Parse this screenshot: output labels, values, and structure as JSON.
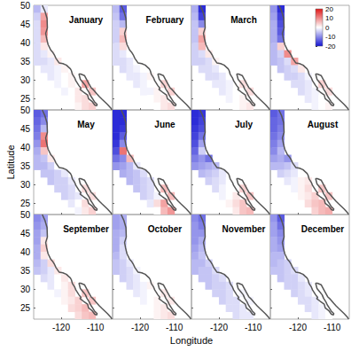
{
  "chart_data": {
    "type": "heatmap",
    "x_label": "Longitude",
    "y_label": "Latitude",
    "xlim": [
      -128,
      -105
    ],
    "ylim": [
      22,
      50
    ],
    "xticks": [
      -120,
      -110
    ],
    "yticks": [
      25,
      30,
      35,
      40,
      45,
      50
    ],
    "grid": false,
    "cell_size": [
      2,
      2
    ],
    "cells": [
      [
        -127,
        49
      ],
      [
        -125,
        49
      ],
      [
        -127,
        47
      ],
      [
        -125,
        47
      ],
      [
        -127,
        45
      ],
      [
        -125,
        45
      ],
      [
        -127,
        43
      ],
      [
        -125,
        43
      ],
      [
        -127,
        41
      ],
      [
        -125,
        41
      ],
      [
        -127,
        39
      ],
      [
        -125,
        39
      ],
      [
        -127,
        37
      ],
      [
        -125,
        37
      ],
      [
        -123,
        37
      ],
      [
        -127,
        35
      ],
      [
        -125,
        35
      ],
      [
        -123,
        35
      ],
      [
        -121,
        35
      ],
      [
        -125,
        33
      ],
      [
        -123,
        33
      ],
      [
        -121,
        33
      ],
      [
        -119,
        33
      ],
      [
        -123,
        31
      ],
      [
        -121,
        31
      ],
      [
        -119,
        31
      ],
      [
        -117,
        31
      ],
      [
        -121,
        29
      ],
      [
        -119,
        29
      ],
      [
        -117,
        29
      ],
      [
        -113,
        29
      ],
      [
        -119,
        27
      ],
      [
        -117,
        27
      ],
      [
        -115,
        27
      ],
      [
        -111,
        27
      ],
      [
        -117,
        25
      ],
      [
        -115,
        25
      ],
      [
        -113,
        25
      ],
      [
        -115,
        23
      ],
      [
        -113,
        23
      ],
      [
        -111,
        23
      ]
    ],
    "panels": [
      {
        "title": "January",
        "values": [
          -6,
          -2,
          -4,
          8,
          -3,
          10,
          -3,
          9,
          -3,
          6,
          -3,
          2,
          -3,
          -2,
          1,
          -3,
          -3,
          -2,
          2,
          -2,
          -2,
          -1,
          1,
          -2,
          -1,
          0,
          1,
          -1,
          0,
          1,
          8,
          -1,
          0,
          2,
          5,
          0,
          2,
          3,
          1,
          3,
          4
        ]
      },
      {
        "title": "February",
        "values": [
          -6,
          -14,
          -5,
          -12,
          -4,
          -6,
          -4,
          4,
          -4,
          6,
          -3,
          3,
          -3,
          -2,
          0,
          -3,
          -3,
          -2,
          0,
          -3,
          -2,
          -1,
          0,
          -2,
          -2,
          -1,
          1,
          -2,
          -1,
          0,
          4,
          -1,
          -1,
          1,
          4,
          0,
          1,
          2,
          0,
          2,
          3
        ]
      },
      {
        "title": "March",
        "values": [
          -7,
          -18,
          -6,
          -16,
          -5,
          -10,
          -5,
          4,
          -5,
          8,
          -4,
          6,
          -4,
          -3,
          2,
          -4,
          -4,
          -3,
          1,
          -3,
          -3,
          -2,
          0,
          -3,
          -3,
          -2,
          0,
          -2,
          -2,
          -1,
          3,
          -2,
          -1,
          0,
          3,
          -1,
          0,
          1,
          0,
          1,
          2
        ]
      },
      {
        "title": null,
        "values": [
          -9,
          -18,
          -8,
          -16,
          -7,
          -15,
          -7,
          -14,
          -7,
          -12,
          -6,
          4,
          -6,
          -4,
          10,
          -6,
          -5,
          -3,
          8,
          -5,
          -4,
          -3,
          2,
          -4,
          -4,
          -3,
          -1,
          -3,
          -3,
          -2,
          4,
          -3,
          -2,
          -1,
          3,
          -2,
          -1,
          0,
          -1,
          0,
          1
        ]
      },
      {
        "title": "May",
        "values": [
          -14,
          -12,
          -13,
          -10,
          -12,
          -6,
          -11,
          10,
          -9,
          12,
          -7,
          5,
          -6,
          -5,
          2,
          -6,
          -6,
          -4,
          0,
          -5,
          -5,
          -4,
          -2,
          -5,
          -4,
          -4,
          -2,
          -4,
          -4,
          -3,
          3,
          -4,
          -3,
          -2,
          3,
          -2,
          0,
          3,
          -1,
          2,
          4
        ]
      },
      {
        "title": "June",
        "values": [
          -18,
          -18,
          -18,
          -18,
          -18,
          -17,
          -18,
          -14,
          -17,
          -10,
          -15,
          12,
          -12,
          -10,
          6,
          -9,
          -8,
          -6,
          -2,
          -7,
          -6,
          -5,
          -3,
          -6,
          -5,
          -4,
          -3,
          -5,
          -4,
          -3,
          6,
          -4,
          -3,
          -1,
          6,
          -2,
          3,
          8,
          0,
          6,
          9
        ]
      },
      {
        "title": "July",
        "values": [
          -18,
          -17,
          -18,
          -16,
          -17,
          -15,
          -16,
          -12,
          -15,
          -8,
          -13,
          -4,
          -11,
          -9,
          -12,
          -9,
          -8,
          -7,
          -6,
          -6,
          -5,
          -4,
          -2,
          -4,
          -3,
          -2,
          0,
          -3,
          -1,
          0,
          4,
          -1,
          0,
          2,
          5,
          1,
          3,
          5,
          2,
          5,
          6
        ]
      },
      {
        "title": "August",
        "values": [
          -14,
          -12,
          -13,
          -12,
          -13,
          -11,
          -12,
          -10,
          -11,
          -8,
          -10,
          -6,
          -8,
          -7,
          -9,
          -6,
          -6,
          -5,
          -3,
          -4,
          -3,
          -2,
          0,
          -2,
          -1,
          1,
          2,
          -1,
          1,
          3,
          5,
          1,
          2,
          4,
          5,
          3,
          5,
          6,
          4,
          6,
          7
        ]
      },
      {
        "title": "September",
        "values": [
          -10,
          -8,
          -9,
          -7,
          -8,
          -5,
          -8,
          2,
          -7,
          4,
          -7,
          2,
          -6,
          -4,
          3,
          -5,
          -4,
          -2,
          2,
          -3,
          -2,
          0,
          2,
          -2,
          0,
          1,
          3,
          -1,
          1,
          3,
          5,
          1,
          2,
          4,
          5,
          3,
          4,
          6,
          3,
          5,
          6
        ]
      },
      {
        "title": "October",
        "values": [
          -8,
          -7,
          -8,
          -7,
          -7,
          -6,
          -7,
          -4,
          -7,
          -3,
          -6,
          -3,
          -5,
          -4,
          -2,
          -5,
          -4,
          -3,
          -1,
          -4,
          -3,
          -2,
          0,
          -3,
          -2,
          -1,
          1,
          -2,
          -1,
          0,
          2,
          -1,
          0,
          1,
          2,
          0,
          1,
          2,
          1,
          2,
          3
        ]
      },
      {
        "title": "November",
        "values": [
          -10,
          -12,
          -9,
          -11,
          -9,
          -9,
          -9,
          -7,
          -8,
          -6,
          -7,
          -5,
          -6,
          -6,
          -4,
          -6,
          -5,
          -5,
          -3,
          -5,
          -5,
          -4,
          -3,
          -5,
          -4,
          -4,
          -3,
          -4,
          -4,
          -3,
          -1,
          -4,
          -3,
          -3,
          -1,
          -3,
          -3,
          -2,
          -3,
          -2,
          -2
        ]
      },
      {
        "title": "December",
        "values": [
          -9,
          -14,
          -8,
          -12,
          -8,
          -10,
          -7,
          -9,
          -7,
          -8,
          -6,
          -6,
          -6,
          -5,
          -4,
          -5,
          -5,
          -4,
          -3,
          -5,
          -4,
          -4,
          -2,
          -4,
          -4,
          -3,
          -2,
          -4,
          -3,
          -2,
          0,
          -3,
          -3,
          -2,
          0,
          -3,
          -2,
          -1,
          -2,
          -1,
          0
        ]
      }
    ],
    "colorbar": {
      "range": [
        -20,
        20
      ],
      "ticks": [
        -20,
        -10,
        0,
        10,
        20
      ],
      "colors": [
        "#1414d2",
        "#ffffff",
        "#e01818"
      ]
    },
    "coastline": [
      [
        [
          -125.5,
          50
        ],
        [
          -124.7,
          48.4
        ],
        [
          -124.1,
          46.5
        ],
        [
          -124,
          44
        ],
        [
          -124.5,
          42.5
        ],
        [
          -124.2,
          41
        ],
        [
          -123.8,
          39.5
        ],
        [
          -123,
          38
        ],
        [
          -122.5,
          37.5
        ],
        [
          -121.9,
          36.6
        ],
        [
          -121.5,
          35.8
        ],
        [
          -120.6,
          34.6
        ],
        [
          -119.5,
          34.4
        ],
        [
          -118.5,
          34
        ],
        [
          -117.3,
          33
        ],
        [
          -117,
          32.5
        ],
        [
          -116.7,
          31.5
        ],
        [
          -116,
          30.5
        ],
        [
          -115.7,
          29.8
        ],
        [
          -114.8,
          28.5
        ],
        [
          -114.2,
          27.8
        ],
        [
          -114.5,
          27.5
        ],
        [
          -113.5,
          26.8
        ],
        [
          -112.3,
          26
        ],
        [
          -112,
          25
        ],
        [
          -111,
          24.3
        ],
        [
          -110.2,
          23.3
        ],
        [
          -109.6,
          23.1
        ],
        [
          -109.5,
          23.5
        ],
        [
          -110.3,
          24.2
        ],
        [
          -110.7,
          24.8
        ],
        [
          -111.4,
          25.8
        ],
        [
          -111.8,
          26.6
        ],
        [
          -112.5,
          27.6
        ],
        [
          -112.9,
          28.5
        ],
        [
          -113.6,
          29.3
        ],
        [
          -114.4,
          30.2
        ],
        [
          -114.8,
          31.6
        ],
        [
          -114.3,
          31.6
        ],
        [
          -113.2,
          31.2
        ],
        [
          -112.2,
          29.5
        ],
        [
          -111.3,
          28
        ],
        [
          -110.5,
          27.3
        ],
        [
          -109.5,
          26.2
        ],
        [
          -108.8,
          25.5
        ],
        [
          -108,
          24.8
        ],
        [
          -106.5,
          23.5
        ],
        [
          -105.5,
          22.5
        ],
        [
          -105.2,
          22
        ]
      ]
    ]
  }
}
